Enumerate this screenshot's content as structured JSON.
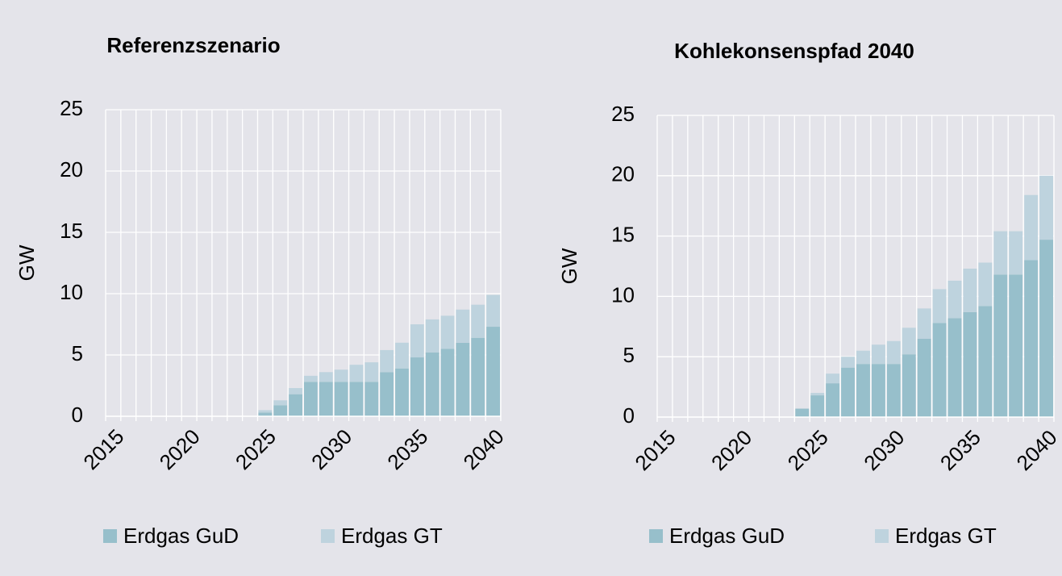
{
  "chart_data": [
    {
      "type": "stacked_bar",
      "title": "Referenzszenario",
      "y_label": "GW",
      "categories": [
        "2015",
        null,
        null,
        null,
        null,
        "2020",
        null,
        null,
        null,
        null,
        "2025",
        null,
        null,
        null,
        null,
        "2030",
        null,
        null,
        null,
        null,
        "2035",
        null,
        null,
        null,
        null,
        "2040"
      ],
      "series": [
        {
          "name": "Erdgas GuD",
          "color": "#97bfcb",
          "values": [
            0,
            0,
            0,
            0,
            0,
            0,
            0,
            0,
            0,
            0,
            0.3,
            0.9,
            1.8,
            2.8,
            2.8,
            2.8,
            2.8,
            2.8,
            3.6,
            3.9,
            4.8,
            5.2,
            5.5,
            6.0,
            6.4,
            7.3
          ]
        },
        {
          "name": "Erdgas GT",
          "color": "#bed3de",
          "values": [
            0,
            0,
            0,
            0,
            0,
            0,
            0,
            0,
            0,
            0,
            0.2,
            0.4,
            0.5,
            0.5,
            0.8,
            1.0,
            1.4,
            1.6,
            1.8,
            2.1,
            2.7,
            2.7,
            2.7,
            2.7,
            2.7,
            2.6
          ]
        }
      ],
      "ylim": [
        0,
        25
      ],
      "yticks": [
        0,
        5,
        10,
        15,
        20,
        25
      ],
      "grid": true
    },
    {
      "type": "stacked_bar",
      "title": "Kohlekonsenspfad 2040",
      "y_label": "GW",
      "categories": [
        "2015",
        null,
        null,
        null,
        null,
        "2020",
        null,
        null,
        null,
        null,
        "2025",
        null,
        null,
        null,
        null,
        "2030",
        null,
        null,
        null,
        null,
        "2035",
        null,
        null,
        null,
        null,
        "2040"
      ],
      "series": [
        {
          "name": "Erdgas GuD",
          "color": "#97bfcb",
          "values": [
            0,
            0,
            0,
            0,
            0,
            0,
            0,
            0,
            0,
            0.7,
            1.8,
            2.8,
            4.1,
            4.4,
            4.4,
            4.4,
            5.2,
            6.5,
            7.8,
            8.2,
            8.7,
            9.2,
            11.8,
            11.8,
            13.0,
            14.7
          ]
        },
        {
          "name": "Erdgas GT",
          "color": "#bed3de",
          "values": [
            0,
            0,
            0,
            0,
            0,
            0,
            0,
            0,
            0,
            0,
            0.2,
            0.8,
            0.9,
            1.1,
            1.6,
            1.9,
            2.2,
            2.5,
            2.8,
            3.1,
            3.6,
            3.6,
            3.6,
            3.6,
            5.4,
            5.3
          ]
        }
      ],
      "ylim": [
        0,
        25
      ],
      "yticks": [
        0,
        5,
        10,
        15,
        20,
        25
      ],
      "grid": true
    }
  ]
}
